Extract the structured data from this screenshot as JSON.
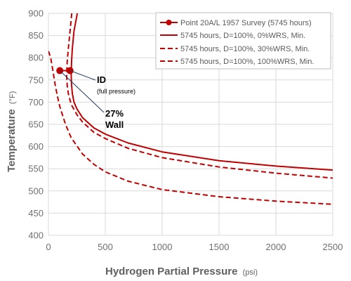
{
  "chart_data": {
    "type": "line",
    "xlabel": "Hydrogen Partial Pressure",
    "xlabel_unit": "(psi)",
    "ylabel": "Temperature",
    "ylabel_unit": "(°F)",
    "xlim": [
      0,
      2500
    ],
    "ylim": [
      400,
      900
    ],
    "x_ticks": [
      "0",
      "500",
      "1000",
      "1500",
      "2000",
      "2500"
    ],
    "y_ticks": [
      "400",
      "450",
      "500",
      "550",
      "600",
      "650",
      "700",
      "750",
      "800",
      "850",
      "900"
    ],
    "grid": true,
    "legend_position": "top-right",
    "series": [
      {
        "name": "Point 20A/L 1957 Survey (5745 hours)",
        "style": "solid-with-markers",
        "color": "#c00000",
        "x": [
          100,
          190
        ],
        "y": [
          771,
          771
        ]
      },
      {
        "name": "5745 hours, D=100%, 0%WRS, Min.",
        "style": "solid",
        "color": "#c00000",
        "x": [
          254,
          225,
          210,
          203,
          200,
          203,
          210,
          225,
          250,
          300,
          400,
          500,
          700,
          1000,
          1500,
          2000,
          2500
        ],
        "y": [
          900,
          860,
          820,
          790,
          760,
          740,
          720,
          700,
          685,
          665,
          642,
          628,
          608,
          588,
          568,
          556,
          547
        ]
      },
      {
        "name": "5745 hours, D=100%, 30%WRS, Min.",
        "style": "dashed",
        "color": "#c00000",
        "x": [
          205,
          190,
          175,
          165,
          160,
          165,
          175,
          200,
          250,
          300,
          400,
          500,
          700,
          1000,
          1500,
          2000,
          2500
        ],
        "y": [
          900,
          860,
          820,
          790,
          760,
          738,
          720,
          695,
          672,
          655,
          632,
          618,
          596,
          575,
          554,
          540,
          529
        ]
      },
      {
        "name": "5745 hours, D=100%, 100%WRS, Min.",
        "style": "dashed",
        "color": "#c00000",
        "x": [
          0,
          20,
          40,
          60,
          80,
          100,
          150,
          200,
          300,
          400,
          500,
          700,
          1000,
          1500,
          2000,
          2500
        ],
        "y": [
          815,
          800,
          770,
          738,
          712,
          690,
          650,
          620,
          583,
          560,
          543,
          522,
          503,
          487,
          477,
          470
        ]
      }
    ],
    "annotations": [
      {
        "title": "ID",
        "note": "(full pressure)",
        "x": 190,
        "y": 771
      },
      {
        "title": "27%",
        "title2": "Wall",
        "x": 100,
        "y": 771
      }
    ]
  }
}
